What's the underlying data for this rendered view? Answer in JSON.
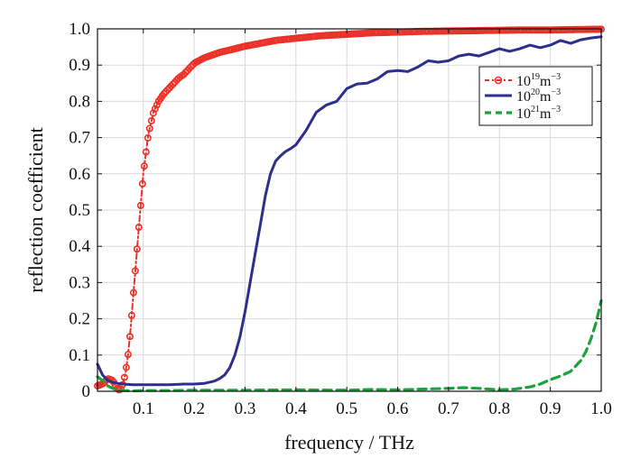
{
  "chart_data": {
    "type": "line",
    "xlabel": "frequency / THz",
    "ylabel": "reflection coefficient",
    "xlim": [
      0.01,
      1.0
    ],
    "ylim": [
      0,
      1.0
    ],
    "xticks": [
      0.1,
      0.2,
      0.3,
      0.4,
      0.5,
      0.6,
      0.7,
      0.8,
      0.9,
      1.0
    ],
    "xtick_labels": [
      "0.1",
      "0.2",
      "0.3",
      "0.4",
      "0.5",
      "0.6",
      "0.7",
      "0.8",
      "0.9",
      "1.0"
    ],
    "yticks": [
      0,
      0.1,
      0.2,
      0.3,
      0.4,
      0.5,
      0.6,
      0.7,
      0.8,
      0.9,
      1.0
    ],
    "ytick_labels": [
      "0",
      "0.1",
      "0.2",
      "0.3",
      "0.4",
      "0.5",
      "0.6",
      "0.7",
      "0.8",
      "0.9",
      "1.0"
    ],
    "grid": true,
    "legend_position": "top-right",
    "series": [
      {
        "legend_base": "10",
        "legend_exp": "19",
        "legend_unit": "m",
        "legend_unit_exp": "−3",
        "color": "#e8322a",
        "style": "dash-dot-circle",
        "x": [
          0.01,
          0.02,
          0.03,
          0.04,
          0.05,
          0.055,
          0.06,
          0.065,
          0.07,
          0.075,
          0.08,
          0.09,
          0.1,
          0.11,
          0.12,
          0.13,
          0.14,
          0.15,
          0.16,
          0.17,
          0.18,
          0.2,
          0.22,
          0.25,
          0.28,
          0.3,
          0.33,
          0.36,
          0.4,
          0.45,
          0.5,
          0.55,
          0.6,
          0.65,
          0.7,
          0.75,
          0.8,
          0.85,
          0.9,
          0.95,
          1.0
        ],
        "y": [
          0.015,
          0.02,
          0.035,
          0.03,
          0.005,
          0.003,
          0.02,
          0.05,
          0.1,
          0.17,
          0.26,
          0.43,
          0.6,
          0.71,
          0.77,
          0.8,
          0.82,
          0.835,
          0.85,
          0.865,
          0.875,
          0.905,
          0.92,
          0.935,
          0.945,
          0.952,
          0.96,
          0.968,
          0.974,
          0.981,
          0.985,
          0.989,
          0.991,
          0.993,
          0.994,
          0.995,
          0.996,
          0.997,
          0.997,
          0.998,
          0.999
        ]
      },
      {
        "legend_base": "10",
        "legend_exp": "20",
        "legend_unit": "m",
        "legend_unit_exp": "−3",
        "color": "#2d2f8c",
        "style": "solid",
        "x": [
          0.01,
          0.02,
          0.03,
          0.04,
          0.05,
          0.06,
          0.08,
          0.1,
          0.12,
          0.15,
          0.18,
          0.2,
          0.22,
          0.24,
          0.25,
          0.26,
          0.27,
          0.28,
          0.29,
          0.3,
          0.31,
          0.32,
          0.33,
          0.34,
          0.35,
          0.36,
          0.37,
          0.38,
          0.39,
          0.4,
          0.42,
          0.44,
          0.46,
          0.48,
          0.5,
          0.52,
          0.54,
          0.56,
          0.58,
          0.6,
          0.62,
          0.64,
          0.66,
          0.68,
          0.7,
          0.72,
          0.74,
          0.76,
          0.78,
          0.8,
          0.82,
          0.84,
          0.86,
          0.88,
          0.9,
          0.92,
          0.94,
          0.96,
          0.98,
          1.0
        ],
        "y": [
          0.075,
          0.045,
          0.03,
          0.025,
          0.022,
          0.02,
          0.018,
          0.018,
          0.018,
          0.018,
          0.02,
          0.02,
          0.022,
          0.028,
          0.035,
          0.045,
          0.065,
          0.1,
          0.15,
          0.22,
          0.3,
          0.38,
          0.46,
          0.54,
          0.6,
          0.635,
          0.65,
          0.662,
          0.67,
          0.68,
          0.72,
          0.77,
          0.79,
          0.8,
          0.835,
          0.848,
          0.85,
          0.862,
          0.882,
          0.885,
          0.882,
          0.895,
          0.912,
          0.908,
          0.912,
          0.925,
          0.93,
          0.925,
          0.935,
          0.945,
          0.938,
          0.945,
          0.955,
          0.948,
          0.955,
          0.968,
          0.96,
          0.97,
          0.975,
          0.978
        ]
      },
      {
        "legend_base": "10",
        "legend_exp": "21",
        "legend_unit": "m",
        "legend_unit_exp": "−3",
        "color": "#1aa33c",
        "style": "dashed",
        "x": [
          0.01,
          0.02,
          0.03,
          0.04,
          0.05,
          0.06,
          0.08,
          0.1,
          0.15,
          0.2,
          0.3,
          0.4,
          0.5,
          0.55,
          0.6,
          0.65,
          0.7,
          0.73,
          0.76,
          0.8,
          0.83,
          0.86,
          0.88,
          0.9,
          0.92,
          0.94,
          0.96,
          0.97,
          0.98,
          0.99,
          1.0
        ],
        "y": [
          0.04,
          0.03,
          0.015,
          0.008,
          0.004,
          0.002,
          0.001,
          0.002,
          0.002,
          0.003,
          0.003,
          0.004,
          0.003,
          0.005,
          0.004,
          0.006,
          0.008,
          0.01,
          0.008,
          0.004,
          0.006,
          0.012,
          0.02,
          0.032,
          0.042,
          0.055,
          0.085,
          0.11,
          0.145,
          0.19,
          0.25
        ]
      }
    ]
  }
}
